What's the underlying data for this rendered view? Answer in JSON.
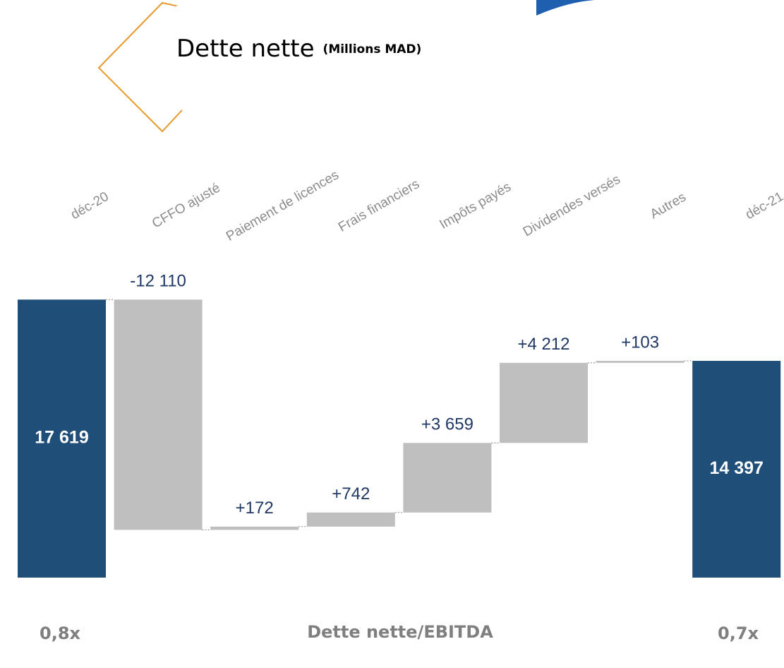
{
  "chart_data": {
    "type": "waterfall",
    "title": "Dette nette",
    "subtitle": "(Millions MAD)",
    "categories": [
      "déc-20",
      "CFFO ajusté",
      "Paiement de licences",
      "Frais financiers",
      "Impôts payés",
      "Dividendes versés",
      "Autres",
      "déc-21"
    ],
    "values": [
      17619,
      -12110,
      172,
      742,
      3659,
      4212,
      103,
      14397
    ],
    "value_labels": [
      "17 619",
      "-12 110",
      "+172",
      "+742",
      "+3 659",
      "+4 212",
      "+103",
      "14 397"
    ],
    "total_color": "#1f4e79",
    "delta_color": "#bfbfbf",
    "ylim": [
      3000,
      18000
    ],
    "ratio_title": "Dette nette/EBITDA",
    "ratios": [
      {
        "value": 0.8,
        "label": "0,8x"
      },
      {
        "value": 0.7,
        "label": "0,7x"
      }
    ]
  }
}
